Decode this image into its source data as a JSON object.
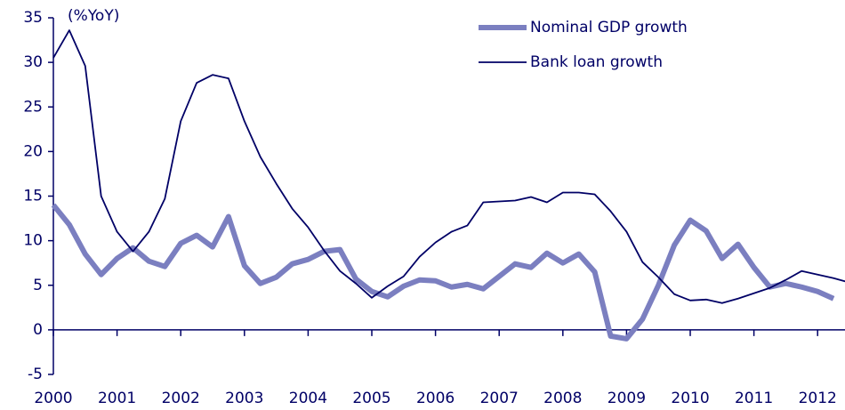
{
  "chart_data": {
    "type": "line",
    "annotation": "(%YoY)",
    "xlim": [
      2000,
      2012.43
    ],
    "xticks": [
      2000,
      2001,
      2002,
      2003,
      2004,
      2005,
      2006,
      2007,
      2008,
      2009,
      2010,
      2011,
      2012
    ],
    "ylim": [
      -5,
      35
    ],
    "yticks": [
      -5,
      0,
      5,
      10,
      15,
      20,
      25,
      30,
      35
    ],
    "legend": "top-right",
    "series": [
      {
        "name": "Nominal GDP growth",
        "color": "#7b7fc0",
        "x": [
          2000,
          2000.25,
          2000.5,
          2000.75,
          2001,
          2001.25,
          2001.5,
          2001.75,
          2002,
          2002.25,
          2002.5,
          2002.75,
          2003,
          2003.25,
          2003.5,
          2003.75,
          2004,
          2004.25,
          2004.5,
          2004.75,
          2005,
          2005.25,
          2005.5,
          2005.75,
          2006,
          2006.25,
          2006.5,
          2006.75,
          2007,
          2007.25,
          2007.5,
          2007.75,
          2008,
          2008.25,
          2008.5,
          2008.75,
          2009,
          2009.25,
          2009.5,
          2009.75,
          2010,
          2010.25,
          2010.5,
          2010.75,
          2011,
          2011.25,
          2011.5,
          2011.75,
          2012,
          2012.25
        ],
        "values": [
          14,
          11.8,
          8.5,
          6.2,
          8,
          9.2,
          7.7,
          7.1,
          9.7,
          10.6,
          9.3,
          12.7,
          7.2,
          5.2,
          5.9,
          7.4,
          7.9,
          8.8,
          9,
          5.7,
          4.3,
          3.7,
          4.9,
          5.6,
          5.5,
          4.8,
          5.1,
          4.6,
          6,
          7.4,
          7,
          8.6,
          7.5,
          8.5,
          6.5,
          -0.7,
          -1,
          1.2,
          5,
          9.5,
          12.3,
          11.1,
          8,
          9.6,
          7,
          4.8,
          5.2,
          4.8,
          4.3,
          3.5
        ]
      },
      {
        "name": "Bank loan growth",
        "color": "#000066",
        "x": [
          2000,
          2000.25,
          2000.5,
          2000.75,
          2001,
          2001.25,
          2001.5,
          2001.75,
          2002,
          2002.25,
          2002.5,
          2002.75,
          2003,
          2003.25,
          2003.5,
          2003.75,
          2004,
          2004.25,
          2004.5,
          2004.75,
          2005,
          2005.25,
          2005.5,
          2005.75,
          2006,
          2006.25,
          2006.5,
          2006.75,
          2007,
          2007.25,
          2007.5,
          2007.75,
          2008,
          2008.25,
          2008.5,
          2008.75,
          2009,
          2009.25,
          2009.5,
          2009.75,
          2010,
          2010.25,
          2010.5,
          2010.75,
          2011,
          2011.25,
          2011.5,
          2011.75,
          2012,
          2012.25,
          2012.5
        ],
        "values": [
          30.5,
          33.6,
          29.6,
          15,
          11,
          8.8,
          11,
          14.7,
          23.4,
          27.7,
          28.6,
          28.2,
          23.4,
          19.4,
          16.4,
          13.6,
          11.5,
          8.9,
          6.6,
          5.2,
          3.6,
          4.9,
          6,
          8.2,
          9.8,
          11,
          11.7,
          14.3,
          14.4,
          14.5,
          14.9,
          14.3,
          15.4,
          15.4,
          15.2,
          13.3,
          11,
          7.6,
          5.9,
          4,
          3.3,
          3.4,
          3,
          3.5,
          4.1,
          4.7,
          5.6,
          6.6,
          6.2,
          5.8,
          5.3
        ]
      }
    ]
  }
}
